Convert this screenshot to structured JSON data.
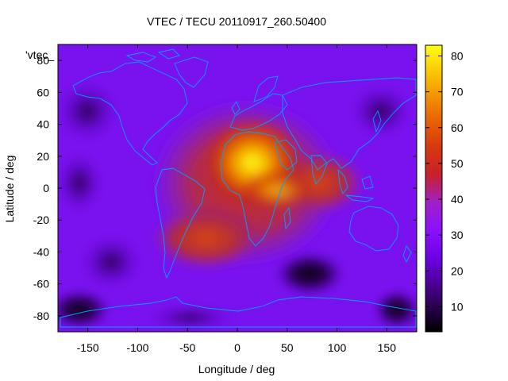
{
  "title": "VTEC / TECU 20110917_260.50400",
  "series_label": "'vtec_",
  "xlabel": "Longitude / deg",
  "ylabel": "Latitude / deg",
  "x_ticks": [
    "-150",
    "-100",
    "-50",
    "0",
    "50",
    "100",
    "150"
  ],
  "y_ticks": [
    "80",
    "60",
    "40",
    "20",
    "0",
    "-20",
    "-40",
    "-60",
    "-80"
  ],
  "colorbar_ticks": [
    "80",
    "70",
    "60",
    "50",
    "40",
    "30",
    "20",
    "10"
  ],
  "colors": {
    "coastline": "#00a0ff",
    "palette_low": "#000000",
    "palette_mid": "#7a00ff",
    "palette_high": "#ffff00"
  },
  "chart_data": {
    "type": "heatmap",
    "title": "VTEC / TECU 20110917_260.50400",
    "xlabel": "Longitude / deg",
    "ylabel": "Latitude / deg",
    "xlim": [
      -180,
      180
    ],
    "ylim": [
      -90,
      90
    ],
    "zlim": [
      3,
      83
    ],
    "colorbar_ticks": [
      10,
      20,
      30,
      40,
      50,
      60,
      70,
      80
    ],
    "peak": {
      "lon": 15,
      "lat": 20,
      "value": 82
    }
  }
}
